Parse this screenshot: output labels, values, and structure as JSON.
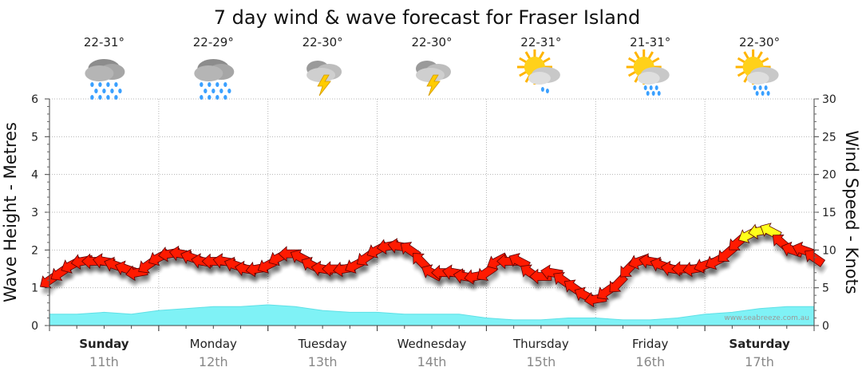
{
  "chart_data": {
    "type": "line",
    "title": "7 day wind & wave forecast for Fraser Island",
    "ylabel_left": "Wave Height - Metres",
    "ylabel_right": "Wind Speed - Knots",
    "ylim_left": [
      0,
      6
    ],
    "ylim_right": [
      0,
      30
    ],
    "yticks_left": [
      "0",
      "1",
      "2",
      "3",
      "4",
      "5",
      "6"
    ],
    "yticks_right": [
      "0",
      "5",
      "10",
      "15",
      "20",
      "25",
      "30"
    ],
    "grid": true,
    "watermark": "www.seabreeze.com.au",
    "days": [
      {
        "name": "Sunday",
        "date": "11th",
        "bold": true,
        "temp": "22-31°",
        "icon": "rain-cloud-icon"
      },
      {
        "name": "Monday",
        "date": "12th",
        "bold": false,
        "temp": "22-29°",
        "icon": "rain-cloud-icon"
      },
      {
        "name": "Tuesday",
        "date": "13th",
        "bold": false,
        "temp": "22-30°",
        "icon": "thunderstorm-icon"
      },
      {
        "name": "Wednesday",
        "date": "14th",
        "bold": false,
        "temp": "22-30°",
        "icon": "thunderstorm-icon"
      },
      {
        "name": "Thursday",
        "date": "15th",
        "bold": false,
        "temp": "22-31°",
        "icon": "sun-cloud-shower-icon"
      },
      {
        "name": "Friday",
        "date": "16th",
        "bold": false,
        "temp": "21-31°",
        "icon": "sun-cloud-rain-icon"
      },
      {
        "name": "Saturday",
        "date": "17th",
        "bold": true,
        "temp": "22-30°",
        "icon": "sun-cloud-rain-icon"
      }
    ],
    "colors": {
      "wave_fill": "#7ff2f6",
      "wave_line": "#5fe0e6",
      "wind_strong": "#ff1a00",
      "wind_gusty": "#ffff1a",
      "grid": "#b5b5b5"
    },
    "x_units": "day index (0 = start of Sunday 11th, 7 = end of Saturday 17th)",
    "series": [
      {
        "kind": "wave",
        "x": [
          0.0,
          0.25,
          0.5,
          0.75,
          1.0,
          1.25,
          1.5,
          1.75,
          2.0,
          2.25,
          2.5,
          2.75,
          3.0,
          3.25,
          3.5,
          3.75,
          4.0,
          4.25,
          4.5,
          4.75,
          5.0,
          5.25,
          5.5,
          5.75,
          6.0,
          6.25,
          6.5,
          6.75,
          7.0
        ],
        "values": [
          0.3,
          0.3,
          0.35,
          0.3,
          0.4,
          0.45,
          0.5,
          0.5,
          0.55,
          0.5,
          0.4,
          0.35,
          0.35,
          0.3,
          0.3,
          0.3,
          0.2,
          0.15,
          0.15,
          0.2,
          0.2,
          0.15,
          0.15,
          0.2,
          0.3,
          0.35,
          0.45,
          0.5,
          0.5
        ]
      },
      {
        "kind": "wind",
        "x": [
          0.0,
          0.1,
          0.2,
          0.3,
          0.4,
          0.5,
          0.6,
          0.7,
          0.8,
          0.9,
          1.0,
          1.1,
          1.2,
          1.3,
          1.4,
          1.5,
          1.6,
          1.7,
          1.8,
          1.9,
          2.0,
          2.1,
          2.2,
          2.3,
          2.4,
          2.5,
          2.6,
          2.7,
          2.8,
          2.9,
          3.0,
          3.1,
          3.2,
          3.3,
          3.4,
          3.5,
          3.6,
          3.7,
          3.8,
          3.9,
          4.0,
          4.1,
          4.2,
          4.3,
          4.4,
          4.5,
          4.6,
          4.7,
          4.8,
          4.9,
          5.0,
          5.1,
          5.2,
          5.3,
          5.4,
          5.5,
          5.6,
          5.7,
          5.8,
          5.9,
          6.0,
          6.1,
          6.2,
          6.3,
          6.4,
          6.5,
          6.6,
          6.7,
          6.8,
          6.9,
          7.0
        ],
        "values": [
          6,
          7,
          8,
          8.5,
          8.5,
          8.5,
          8,
          7.5,
          7,
          8,
          9,
          9.5,
          9.5,
          9,
          8.5,
          8.5,
          8.5,
          8,
          7.5,
          7.5,
          8,
          9,
          9.5,
          9,
          8,
          7.5,
          7.5,
          7.5,
          8,
          9,
          10,
          10.5,
          10.5,
          10,
          8.5,
          7,
          7,
          7,
          6.5,
          6.5,
          7,
          8.5,
          8.5,
          8.5,
          7,
          6.5,
          7,
          6,
          5,
          4,
          3.5,
          4.5,
          5.5,
          7.5,
          8.5,
          8.5,
          8,
          7.5,
          7.5,
          7.5,
          8,
          8.5,
          9.5,
          11,
          12,
          12.5,
          12.5,
          11,
          10,
          10,
          9
        ]
      }
    ]
  }
}
